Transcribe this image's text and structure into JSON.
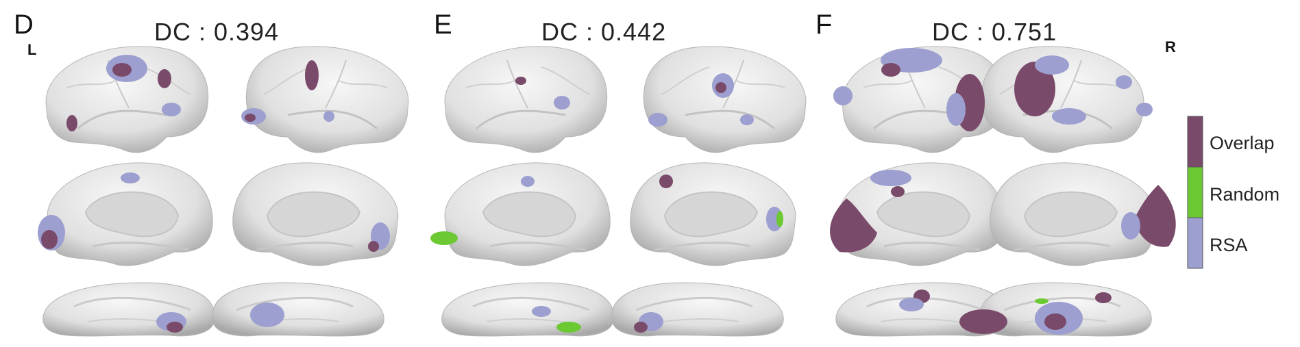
{
  "panels": [
    {
      "letter": "D",
      "dc_text": "DC : 0.394"
    },
    {
      "letter": "E",
      "dc_text": "DC : 0.442"
    },
    {
      "letter": "F",
      "dc_text": "DC : 0.751"
    }
  ],
  "hemisphere": {
    "left": "L",
    "right": "R"
  },
  "legend": {
    "items": [
      {
        "label": "Overlap",
        "color": "#7a4a6a"
      },
      {
        "label": "Random",
        "color": "#6cc934"
      },
      {
        "label": "RSA",
        "color": "#9c9fcf"
      }
    ]
  },
  "colors": {
    "brain": "#e6e6e6",
    "brain_shadow": "#a8a8a8"
  }
}
